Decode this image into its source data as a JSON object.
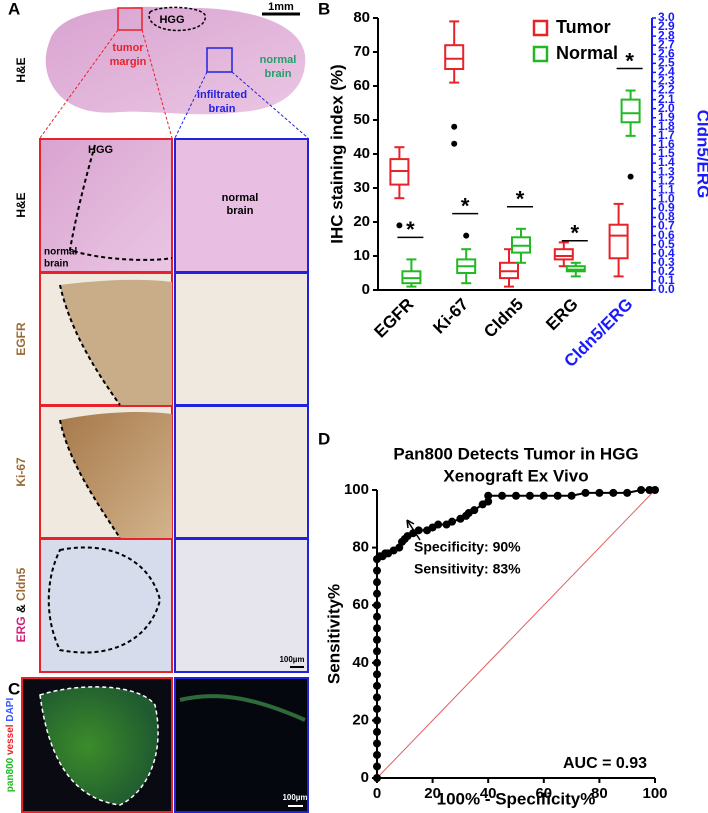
{
  "panel_labels": [
    "A",
    "B",
    "C",
    "D"
  ],
  "panel_a": {
    "overview_label": "H&E",
    "scale_bar": "1mm",
    "hgg": "HGG",
    "tumor_margin": [
      "tumor",
      "margin"
    ],
    "normal_brain": [
      "normal",
      "brain"
    ],
    "infiltrated_brain": [
      "infiltrated",
      "brain"
    ],
    "rows": [
      "H&E",
      "EGFR",
      "Ki-67"
    ],
    "last_row": [
      "ERG",
      "&",
      "Cldn5"
    ],
    "inset_hgg": "HGG",
    "inset_normal_left": [
      "normal",
      "brain"
    ],
    "inset_normal_right": [
      "normal",
      "brain"
    ],
    "scale_bar_inset": "100µm"
  },
  "panel_c": {
    "stain": [
      "pan800",
      "vessel",
      "DAPI"
    ],
    "scale_bar": "100µm"
  },
  "chart_data": [
    {
      "type": "box",
      "categories": [
        "EGFR",
        "Ki-67",
        "Cldn5",
        "ERG",
        "Cldn5/ERG"
      ],
      "category_axis": [
        "y",
        "y",
        "y",
        "y",
        "y2"
      ],
      "y_label": "IHC staining index (%)",
      "y2_label": "Cldn5/ERG",
      "y2_color": "#1a1aff",
      "ylim": [
        0,
        80
      ],
      "yticks": [
        0,
        10,
        20,
        30,
        40,
        50,
        60,
        70,
        80
      ],
      "y2lim": [
        0,
        3
      ],
      "y2ticks": [
        {
          "value": 0,
          "label": "0.0"
        },
        0.1,
        0.2,
        0.3,
        0.4,
        0.5,
        0.6,
        0.7,
        0.8,
        0.9,
        {
          "value": 1,
          "label": "1.0"
        },
        1.1,
        1.2,
        1.3,
        1.4,
        1.5,
        1.6,
        1.7,
        1.8,
        1.9,
        {
          "value": 2,
          "label": "2.0"
        },
        2.1,
        2.2,
        2.3,
        2.4,
        2.5,
        2.6,
        2.7,
        2.8,
        2.9,
        {
          "value": 3,
          "label": "3.0"
        }
      ],
      "legend": "upper right",
      "annotations": [
        "*",
        "*",
        "*",
        "*",
        "*"
      ],
      "series": [
        {
          "name": "Tumor",
          "color": "#e8222a",
          "values": [
            {
              "min": 27,
              "q1": 31,
              "median": 35,
              "q3": 38.5,
              "max": 42,
              "outliers": [
                19
              ]
            },
            {
              "min": 61,
              "q1": 65,
              "median": 68,
              "q3": 72,
              "max": 79,
              "outliers": [
                48,
                43
              ]
            },
            {
              "min": 1,
              "q1": 3.5,
              "median": 5.5,
              "q3": 8,
              "max": 12,
              "outliers": []
            },
            {
              "min": 7,
              "q1": 9,
              "median": 10,
              "q3": 12,
              "max": 14,
              "outliers": []
            },
            {
              "min": 0.15,
              "q1": 0.35,
              "median": 0.6,
              "q3": 0.72,
              "max": 0.95,
              "outliers": []
            }
          ]
        },
        {
          "name": "Normal",
          "color": "#22b822",
          "values": [
            {
              "min": 1,
              "q1": 2,
              "median": 3.5,
              "q3": 5.5,
              "max": 9,
              "outliers": []
            },
            {
              "min": 2,
              "q1": 5,
              "median": 7,
              "q3": 9,
              "max": 12,
              "outliers": [
                16
              ]
            },
            {
              "min": 8,
              "q1": 11,
              "median": 13,
              "q3": 15.5,
              "max": 18,
              "outliers": []
            },
            {
              "min": 4,
              "q1": 5.5,
              "median": 6,
              "q3": 7,
              "max": 8,
              "outliers": []
            },
            {
              "min": 1.7,
              "q1": 1.85,
              "median": 1.95,
              "q3": 2.1,
              "max": 2.2,
              "outliers": [
                1.25
              ]
            }
          ]
        }
      ]
    },
    {
      "type": "line",
      "title": [
        "Pan800 Detects Tumor in HGG",
        "Xenograft Ex Vivo"
      ],
      "x_label": "100% - Specificity%",
      "y_label": "Sensitivity%",
      "xlim": [
        0,
        100
      ],
      "ylim": [
        0,
        100
      ],
      "xticks": [
        0,
        20,
        40,
        60,
        80,
        100
      ],
      "yticks": [
        0,
        20,
        40,
        60,
        80,
        100
      ],
      "color": "#000000",
      "reference_color": "#e06060",
      "annotations": [
        "Specificity: 90%",
        "Sensitivity: 83%",
        "AUC = 0.93"
      ],
      "x": [
        0,
        0,
        0,
        0,
        0,
        0,
        0,
        0,
        0,
        0,
        0,
        0,
        0,
        0,
        0,
        0,
        0,
        0,
        0,
        0,
        1,
        2,
        3,
        4,
        6,
        8,
        9,
        10,
        11,
        13,
        15,
        18,
        20,
        22,
        25,
        27,
        30,
        32,
        33,
        35,
        38,
        40,
        40,
        45,
        50,
        55,
        60,
        65,
        70,
        75,
        80,
        85,
        90,
        95,
        98,
        100
      ],
      "values": [
        0,
        4,
        8,
        12,
        16,
        20,
        24,
        28,
        32,
        36,
        40,
        44,
        48,
        52,
        56,
        60,
        64,
        68,
        72,
        76,
        77,
        77,
        78,
        78,
        79,
        80,
        82,
        83,
        84,
        85,
        86,
        86,
        87,
        88,
        88,
        89,
        90,
        91,
        92,
        93,
        95,
        96,
        98,
        98,
        98,
        98,
        98,
        98,
        98,
        99,
        99,
        99,
        99,
        100,
        100,
        100
      ]
    }
  ]
}
